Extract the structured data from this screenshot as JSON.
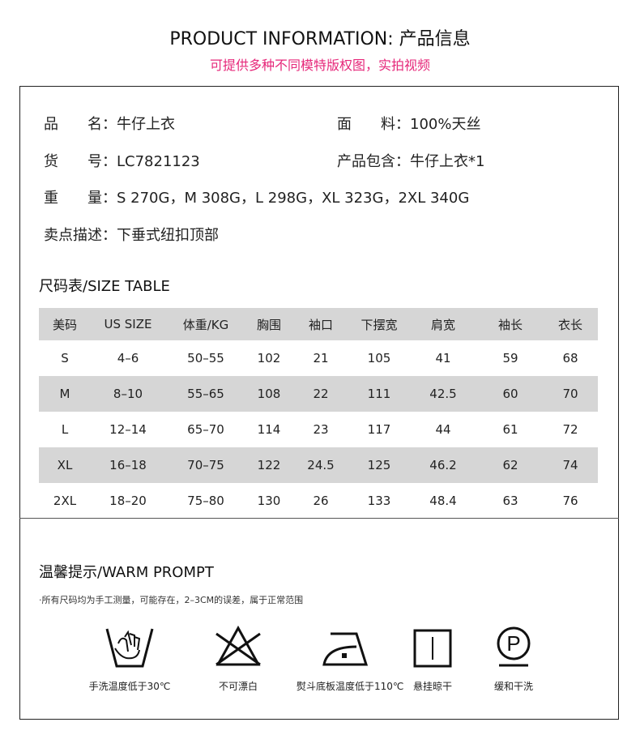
{
  "header": {
    "title": "PRODUCT INFORMATION: 产品信息",
    "subtitle": "可提供多种不同模特版权图，实拍视频",
    "subtitle_color": "#e6287a"
  },
  "info": {
    "name_label": "品　　名：",
    "name_value": "牛仔上衣",
    "fabric_label": "面　　料：",
    "fabric_value": "100%天丝",
    "sku_label": "货　　号：",
    "sku_value": "LC7821123",
    "includes_label": "产品包含：",
    "includes_value": "牛仔上衣*1",
    "weight_label": "重　　量：",
    "weight_value": "S 270G，M 308G，L 298G，XL 323G，2XL 340G",
    "feature_label": "卖点描述：",
    "feature_value": "下垂式纽扣顶部"
  },
  "size_table": {
    "title": "尺码表/SIZE TABLE",
    "columns": [
      "美码",
      "US SIZE",
      "体重/KG",
      "胸围",
      "袖口",
      "下摆宽",
      "肩宽",
      "袖长",
      "衣长"
    ],
    "rows": [
      [
        "S",
        "4–6",
        "50–55",
        "102",
        "21",
        "105",
        "41",
        "59",
        "68"
      ],
      [
        "M",
        "8–10",
        "55–65",
        "108",
        "22",
        "111",
        "42.5",
        "60",
        "70"
      ],
      [
        "L",
        "12–14",
        "65–70",
        "114",
        "23",
        "117",
        "44",
        "61",
        "72"
      ],
      [
        "XL",
        "16–18",
        "70–75",
        "122",
        "24.5",
        "125",
        "46.2",
        "62",
        "74"
      ],
      [
        "2XL",
        "18–20",
        "75–80",
        "130",
        "26",
        "133",
        "48.4",
        "63",
        "76"
      ]
    ]
  },
  "prompt": {
    "title": "温馨提示/WARM PROMPT",
    "note": "·所有尺码均为手工测量，可能存在，2–3CM的误差，属于正常范围",
    "care": [
      {
        "icon": "hand-wash-icon",
        "label": "手洗温度低于30℃"
      },
      {
        "icon": "no-bleach-icon",
        "label": "不可漂白"
      },
      {
        "icon": "iron-low-icon",
        "label": "熨斗底板温度低于110℃"
      },
      {
        "icon": "hang-dry-icon",
        "label": "悬挂晾干"
      },
      {
        "icon": "gentle-dry-clean-icon",
        "label": "缓和干洗"
      }
    ]
  }
}
